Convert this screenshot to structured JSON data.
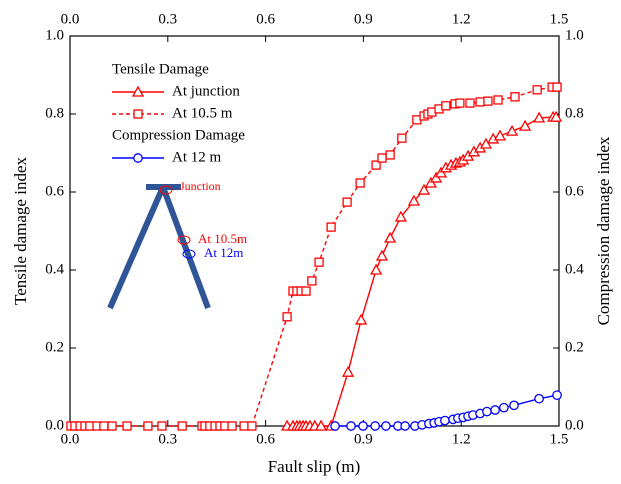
{
  "chart_data": {
    "type": "line",
    "x_label": "Fault slip (m)",
    "y_label": "Tensile damage index",
    "y2_label": "Compression damage index",
    "legend_titles": [
      "Tensile Damage",
      "Compression Damage"
    ],
    "annotations": [
      "Junction",
      "At 10.5m",
      "At 12m"
    ],
    "xlim": [
      0,
      1.5
    ],
    "xticks": [
      {
        "value": 0,
        "label": "0.0"
      },
      0.3,
      0.6,
      0.9,
      1.2,
      1.5
    ],
    "ylim": [
      0,
      1
    ],
    "yticks": [
      {
        "value": 0,
        "label": "0.0"
      },
      0.2,
      0.4,
      0.6,
      0.8,
      {
        "value": 1,
        "label": "1.0"
      }
    ],
    "y2lim": [
      0,
      1
    ],
    "y2ticks": [
      {
        "value": 0,
        "label": "0.0"
      },
      0.2,
      0.4,
      0.6,
      0.8,
      {
        "value": 1,
        "label": "1.0"
      }
    ],
    "series": [
      {
        "name": "At junction",
        "color": "#ff0000",
        "marker": "triangle",
        "dash": false,
        "x": [
          0.666,
          0.684,
          0.696,
          0.705,
          0.715,
          0.724,
          0.736,
          0.751,
          0.77,
          0.801,
          0.853,
          0.893,
          0.939,
          0.957,
          0.982,
          1.015,
          1.055,
          1.086,
          1.107,
          1.123,
          1.138,
          1.153,
          1.169,
          1.184,
          1.196,
          1.206,
          1.221,
          1.239,
          1.258,
          1.276,
          1.298,
          1.319,
          1.356,
          1.396,
          1.439,
          1.482,
          1.491
        ],
        "values": [
          0,
          0,
          0,
          0,
          0,
          0,
          0,
          0,
          0,
          0,
          0.138,
          0.272,
          0.4,
          0.436,
          0.482,
          0.536,
          0.577,
          0.605,
          0.623,
          0.636,
          0.649,
          0.662,
          0.669,
          0.674,
          0.677,
          0.682,
          0.692,
          0.703,
          0.713,
          0.723,
          0.736,
          0.744,
          0.756,
          0.769,
          0.79,
          0.792,
          0.792
        ]
      },
      {
        "name": "At 10.5 m",
        "color": "#ff0000",
        "marker": "square",
        "dash": true,
        "x": [
          0.003,
          0.015,
          0.031,
          0.046,
          0.061,
          0.083,
          0.104,
          0.129,
          0.175,
          0.239,
          0.282,
          0.344,
          0.405,
          0.414,
          0.429,
          0.445,
          0.46,
          0.475,
          0.497,
          0.534,
          0.558,
          0.666,
          0.684,
          0.696,
          0.709,
          0.724,
          0.742,
          0.764,
          0.801,
          0.85,
          0.89,
          0.939,
          0.957,
          0.982,
          1.018,
          1.064,
          1.086,
          1.098,
          1.11,
          1.132,
          1.153,
          1.181,
          1.196,
          1.227,
          1.258,
          1.282,
          1.313,
          1.365,
          1.433,
          1.479,
          1.494
        ],
        "values": [
          0,
          0,
          0,
          0,
          0,
          0,
          0,
          0,
          0,
          0,
          0,
          0,
          0,
          0,
          0,
          0,
          0,
          0,
          0,
          0,
          0,
          0.28,
          0.346,
          0.346,
          0.346,
          0.346,
          0.372,
          0.42,
          0.51,
          0.574,
          0.623,
          0.669,
          0.687,
          0.695,
          0.738,
          0.785,
          0.795,
          0.8,
          0.805,
          0.813,
          0.821,
          0.826,
          0.828,
          0.828,
          0.831,
          0.833,
          0.836,
          0.844,
          0.862,
          0.869,
          0.869
        ]
      },
      {
        "name": "At 12 m",
        "color": "#0000ff",
        "marker": "circle",
        "dash": false,
        "axis": "y2",
        "x": [
          0.813,
          0.862,
          0.899,
          0.936,
          0.969,
          1.006,
          1.028,
          1.058,
          1.08,
          1.101,
          1.117,
          1.132,
          1.15,
          1.175,
          1.19,
          1.206,
          1.221,
          1.236,
          1.258,
          1.279,
          1.304,
          1.331,
          1.362,
          1.439,
          1.494
        ],
        "values": [
          0,
          0,
          0,
          0,
          0,
          0,
          0,
          0,
          0.003,
          0.006,
          0.008,
          0.011,
          0.014,
          0.017,
          0.02,
          0.022,
          0.025,
          0.028,
          0.032,
          0.037,
          0.041,
          0.047,
          0.053,
          0.07,
          0.079
        ]
      }
    ]
  }
}
